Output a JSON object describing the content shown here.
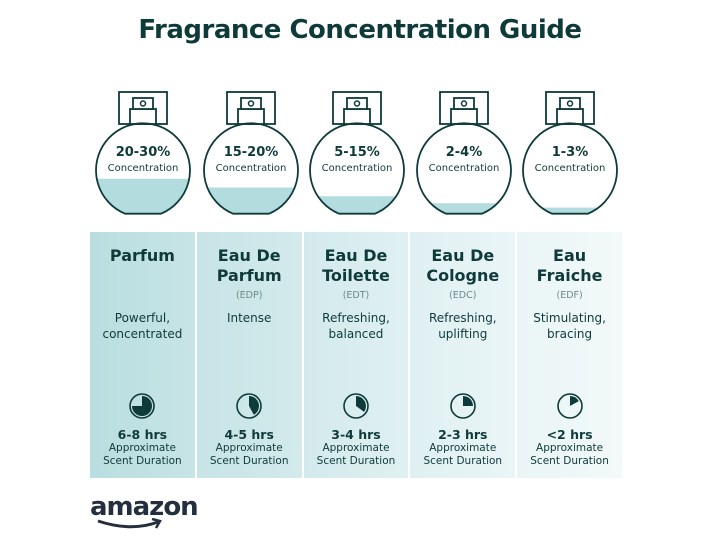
{
  "title": "Fragrance Concentration Guide",
  "colors": {
    "text": "#0f3a3a",
    "fill": "#b3dcdf",
    "panel_left": "#b7dcdd",
    "panel_right": "#eef7f8"
  },
  "types": [
    {
      "concentration": "20-30%",
      "concentration_label": "Concentration",
      "fill_level": 0.4,
      "name": "Parfum",
      "abbr": "",
      "description": "Powerful, concentrated",
      "duration": "6-8 hrs",
      "duration_label": "Approximate Scent Duration",
      "clock_fraction": 0.75
    },
    {
      "concentration": "15-20%",
      "concentration_label": "Concentration",
      "fill_level": 0.3,
      "name": "Eau De Parfum",
      "abbr": "(EDP)",
      "description": "Intense",
      "duration": "4-5 hrs",
      "duration_label": "Approximate Scent Duration",
      "clock_fraction": 0.42
    },
    {
      "concentration": "5-15%",
      "concentration_label": "Concentration",
      "fill_level": 0.2,
      "name": "Eau De Toilette",
      "abbr": "(EDT)",
      "description": "Refreshing, balanced",
      "duration": "3-4 hrs",
      "duration_label": "Approximate Scent Duration",
      "clock_fraction": 0.35
    },
    {
      "concentration": "2-4%",
      "concentration_label": "Concentration",
      "fill_level": 0.12,
      "name": "Eau De Cologne",
      "abbr": "(EDC)",
      "description": "Refreshing, uplifting",
      "duration": "2-3 hrs",
      "duration_label": "Approximate Scent Duration",
      "clock_fraction": 0.25
    },
    {
      "concentration": "1-3%",
      "concentration_label": "Concentration",
      "fill_level": 0.07,
      "name": "Eau Fraiche",
      "abbr": "(EDF)",
      "description": "Stimulating, bracing",
      "duration": "<2 hrs",
      "duration_label": "Approximate Scent Duration",
      "clock_fraction": 0.17
    }
  ],
  "logo": "amazon"
}
